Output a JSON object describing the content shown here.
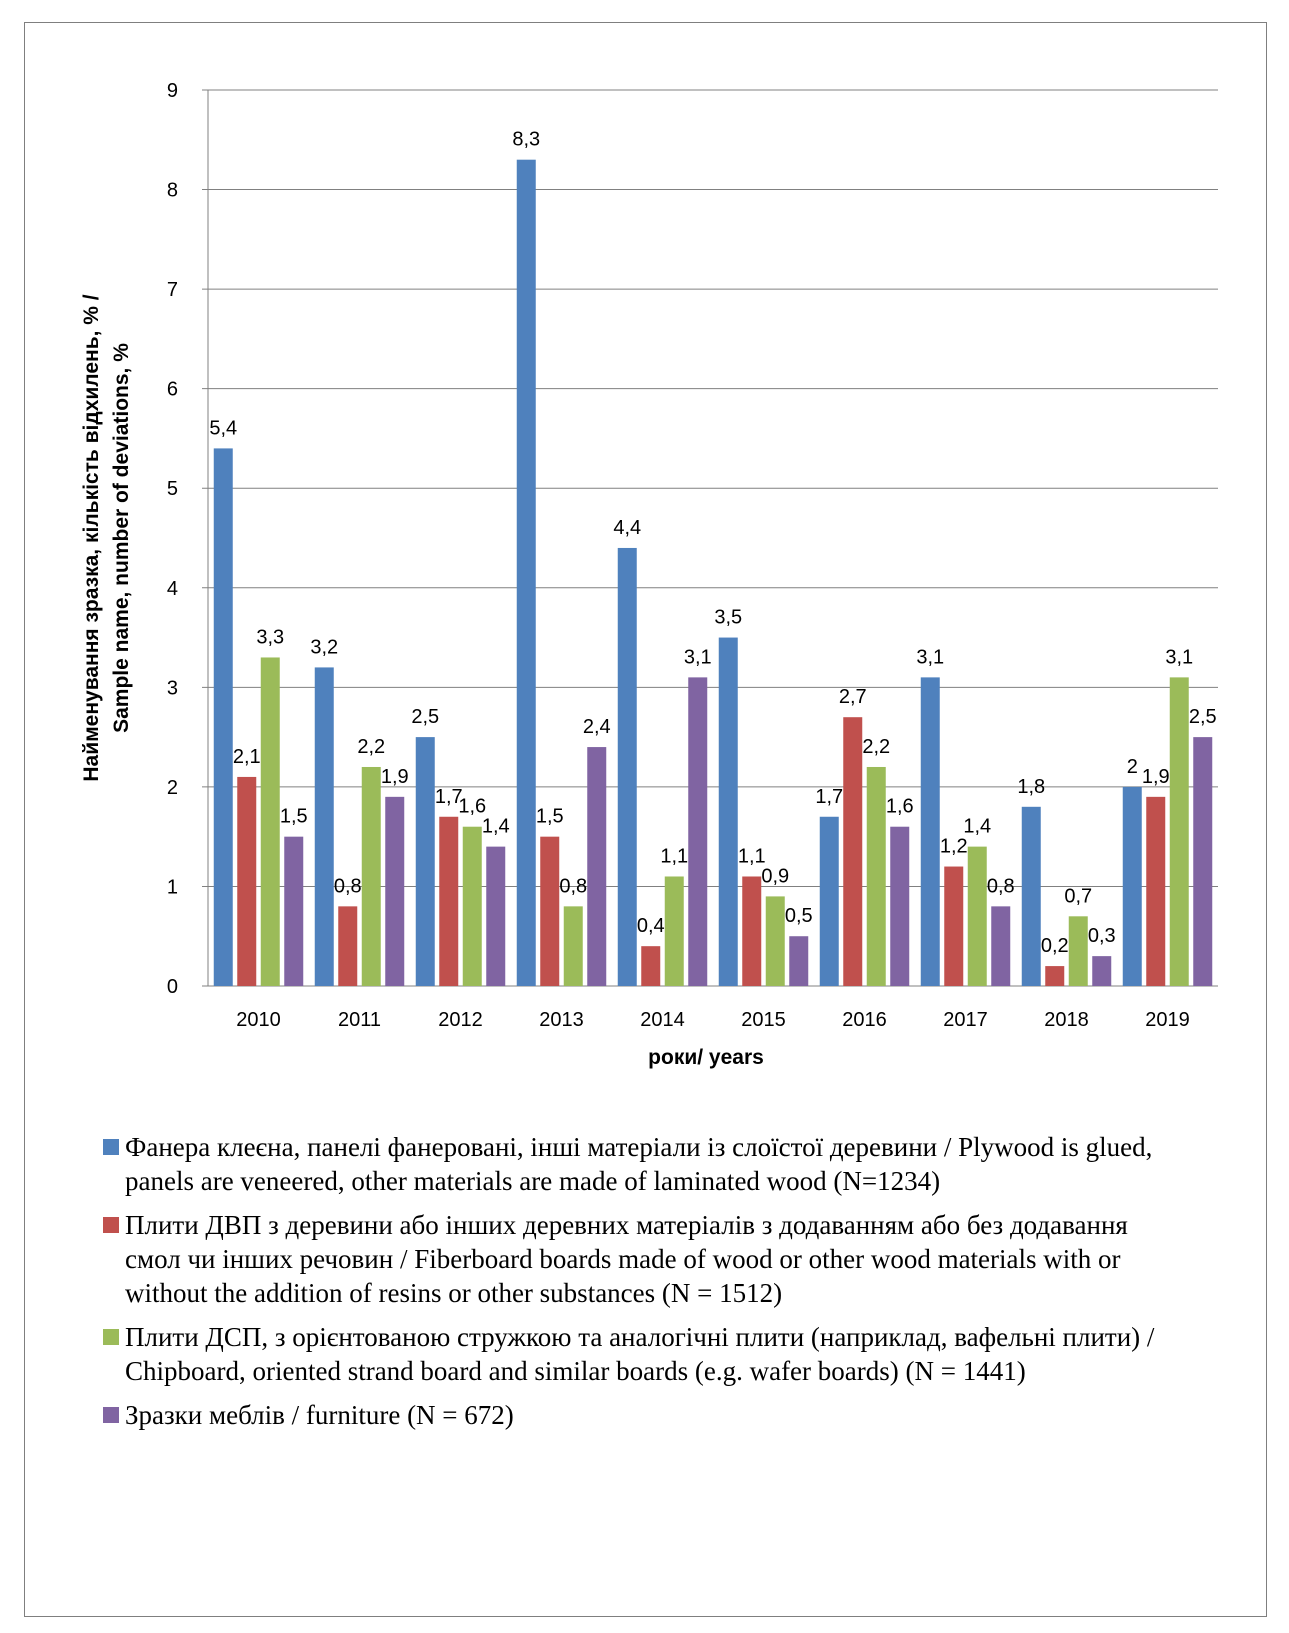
{
  "chart_data": {
    "type": "bar",
    "title": "",
    "xlabel": "роки/ years",
    "ylabel_line1": "Найменування зразка, кількість відхилень, % /",
    "ylabel_line2": "Sample name, number of deviations, %",
    "ylim": [
      0,
      9
    ],
    "yticks": [
      "0",
      "1",
      "2",
      "3",
      "4",
      "5",
      "6",
      "7",
      "8",
      "9"
    ],
    "grid": true,
    "legend_position": "bottom",
    "categories": [
      "2010",
      "2011",
      "2012",
      "2013",
      "2014",
      "2015",
      "2016",
      "2017",
      "2018",
      "2019"
    ],
    "series": [
      {
        "name": "Фанера клеєна, панелі фанеровані, інші матеріали із слоїстої  деревини / Plywood is glued, panels are veneered, other materials are made of laminated wood (N=1234)",
        "color": "#4f81bd",
        "values": [
          5.4,
          3.2,
          2.5,
          8.3,
          4.4,
          3.5,
          1.7,
          3.1,
          1.8,
          2
        ],
        "labels": [
          "5,4",
          "3,2",
          "2,5",
          "8,3",
          "4,4",
          "3,5",
          "1,7",
          "3,1",
          "1,8",
          "2"
        ]
      },
      {
        "name": "Плити ДВП з деревини або інших деревних матеріалів з додаванням або без додавання смол чи інших речовин / Fiberboard boards made of wood or other wood materials with or without the addition of resins or other substances (N = 1512)",
        "color": "#c0504d",
        "values": [
          2.1,
          0.8,
          1.7,
          1.5,
          0.4,
          1.1,
          2.7,
          1.2,
          0.2,
          1.9
        ],
        "labels": [
          "2,1",
          "0,8",
          "1,7",
          "1,5",
          "0,4",
          "1,1",
          "2,7",
          "1,2",
          "0,2",
          "1,9"
        ]
      },
      {
        "name": "Плити ДСП, з орієнтованою стружкою та аналогічні плити (наприклад, вафельні плити) / Chipboard, oriented strand board and similar boards (e.g. wafer boards) (N = 1441)",
        "color": "#9bbb59",
        "values": [
          3.3,
          2.2,
          1.6,
          0.8,
          1.1,
          0.9,
          2.2,
          1.4,
          0.7,
          3.1
        ],
        "labels": [
          "3,3",
          "2,2",
          "1,6",
          "0,8",
          "1,1",
          "0,9",
          "2,2",
          "1,4",
          "0,7",
          "3,1"
        ]
      },
      {
        "name": "Зразки меблів / furniture (N = 672)",
        "color": "#8064a2",
        "values": [
          1.5,
          1.9,
          1.4,
          2.4,
          3.1,
          0.5,
          1.6,
          0.8,
          0.3,
          2.5
        ],
        "labels": [
          "1,5",
          "1,9",
          "1,4",
          "2,4",
          "3,1",
          "0,5",
          "1,6",
          "0,8",
          "0,3",
          "2,5"
        ]
      }
    ]
  }
}
